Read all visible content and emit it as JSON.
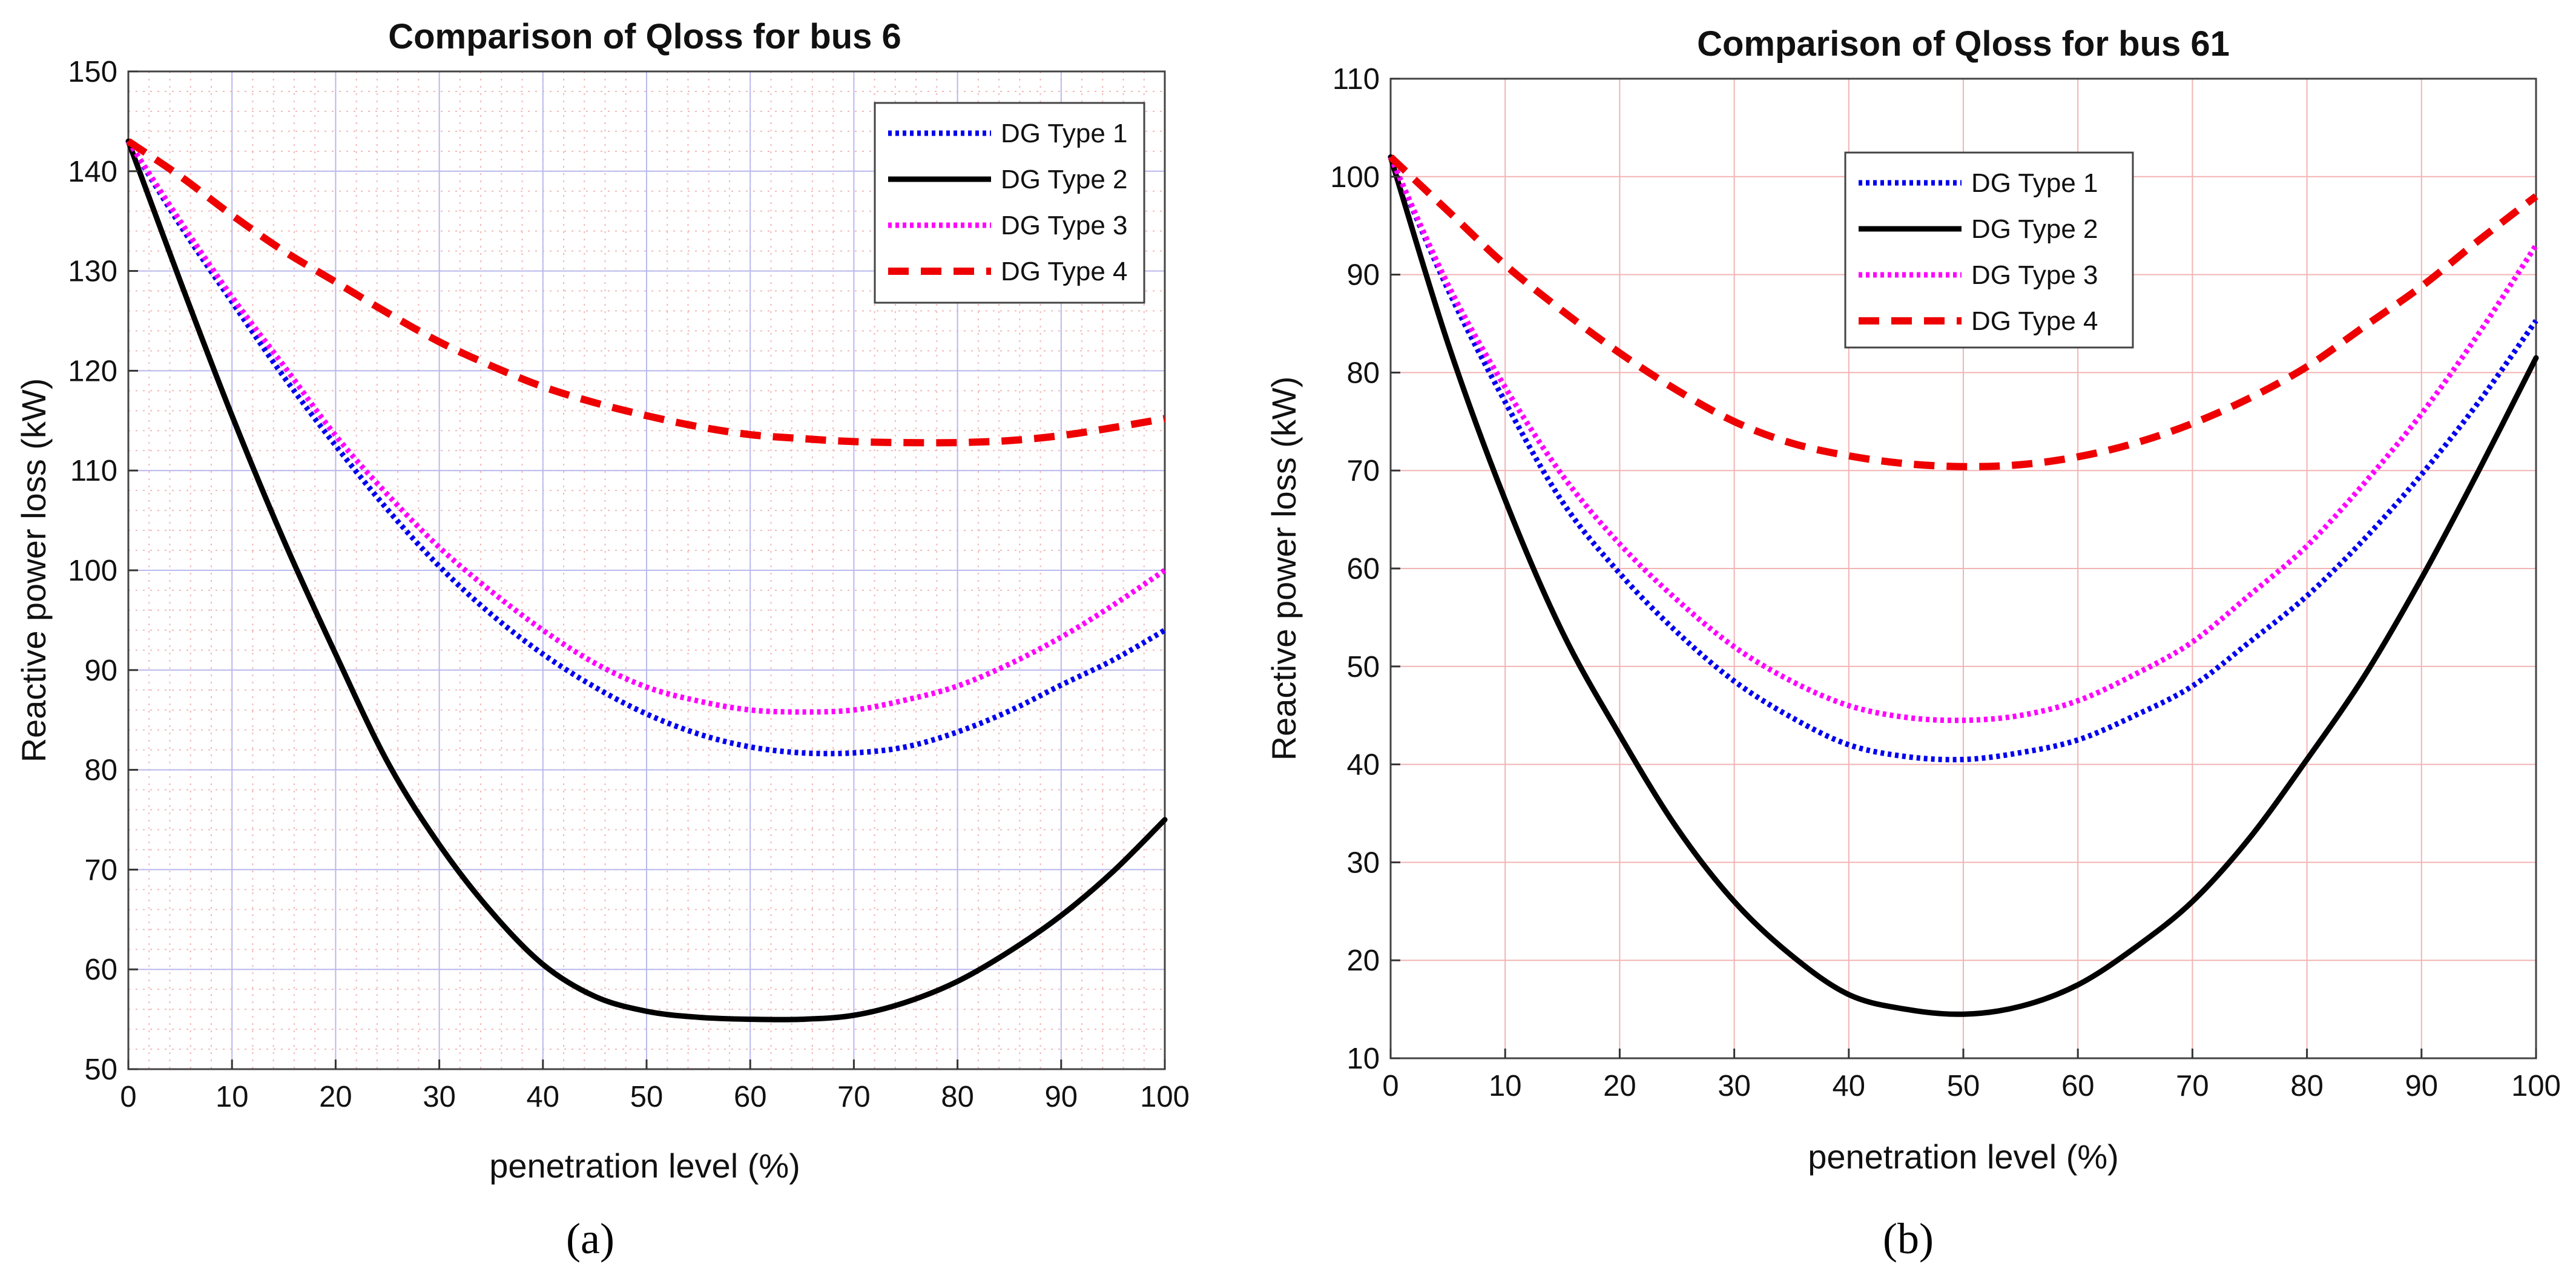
{
  "chart_data": [
    {
      "type": "line",
      "panel_label": "(a)",
      "title": "Comparison of Qloss for bus 6",
      "xlabel": "penetration level (%)",
      "ylabel": "Reactive power loss (kW)",
      "xlim": [
        0,
        100
      ],
      "ylim": [
        50,
        150
      ],
      "xticks": [
        0,
        10,
        20,
        30,
        40,
        50,
        60,
        70,
        80,
        90,
        100
      ],
      "yticks": [
        50,
        60,
        70,
        80,
        90,
        100,
        110,
        120,
        130,
        140,
        150
      ],
      "grid": true,
      "legend_position": "top-right",
      "x": [
        0,
        5,
        10,
        15,
        20,
        25,
        30,
        35,
        40,
        45,
        50,
        55,
        60,
        65,
        70,
        75,
        80,
        85,
        90,
        95,
        100
      ],
      "series": [
        {
          "name": "DG Type 1",
          "color": "#0000ee",
          "style": "dotted",
          "values": [
            143,
            134.6,
            126.9,
            119.4,
            112.5,
            106.1,
            100.4,
            95.6,
            91.6,
            88.3,
            85.6,
            83.6,
            82.3,
            81.7,
            81.7,
            82.3,
            83.8,
            85.9,
            88.5,
            91.0,
            94.0
          ]
        },
        {
          "name": "DG Type 2",
          "color": "#000000",
          "style": "solid",
          "values": [
            143,
            129.0,
            115.5,
            103.0,
            91.6,
            80.8,
            72.5,
            65.8,
            60.5,
            57.3,
            55.8,
            55.2,
            55.0,
            55.0,
            55.4,
            56.7,
            58.8,
            61.8,
            65.4,
            69.8,
            75.0
          ]
        },
        {
          "name": "DG Type 3",
          "color": "#ff00ff",
          "style": "dotted",
          "values": [
            143,
            135.0,
            127.4,
            120.5,
            113.5,
            107.6,
            102.3,
            97.9,
            94.0,
            90.7,
            88.3,
            86.9,
            86.0,
            85.8,
            86.0,
            87.0,
            88.4,
            90.6,
            93.3,
            96.5,
            100.0
          ]
        },
        {
          "name": "DG Type 4",
          "color": "#ee0000",
          "style": "dashed",
          "values": [
            143,
            139.5,
            135.6,
            132.0,
            128.9,
            125.8,
            122.9,
            120.5,
            118.4,
            116.8,
            115.5,
            114.4,
            113.6,
            113.2,
            112.9,
            112.8,
            112.8,
            113.0,
            113.5,
            114.3,
            115.2
          ]
        }
      ]
    },
    {
      "type": "line",
      "panel_label": "(b)",
      "title": "Comparison of Qloss for bus 61",
      "xlabel": "penetration level (%)",
      "ylabel": "Reactive power loss (kW)",
      "xlim": [
        0,
        100
      ],
      "ylim": [
        10,
        110
      ],
      "xticks": [
        0,
        10,
        20,
        30,
        40,
        50,
        60,
        70,
        80,
        90,
        100
      ],
      "yticks": [
        10,
        20,
        30,
        40,
        50,
        60,
        70,
        80,
        90,
        100,
        110
      ],
      "grid": true,
      "legend_position": "top-center",
      "x": [
        0,
        5,
        10,
        15,
        20,
        25,
        30,
        35,
        40,
        45,
        50,
        55,
        60,
        65,
        70,
        75,
        80,
        85,
        90,
        95,
        100
      ],
      "series": [
        {
          "name": "DG Type 1",
          "color": "#0000ee",
          "style": "dotted",
          "values": [
            102,
            88.5,
            77.0,
            66.8,
            59.5,
            53.5,
            48.5,
            44.8,
            42.0,
            40.8,
            40.5,
            41.2,
            42.5,
            45.0,
            48.0,
            52.5,
            57.2,
            63.0,
            69.6,
            77.0,
            85.3
          ]
        },
        {
          "name": "DG Type 2",
          "color": "#000000",
          "style": "solid",
          "values": [
            102,
            83.0,
            67.0,
            53.5,
            43.0,
            33.5,
            26.0,
            20.5,
            16.5,
            15.0,
            14.5,
            15.3,
            17.5,
            21.3,
            26.0,
            32.5,
            40.5,
            49.0,
            59.0,
            70.0,
            81.5
          ]
        },
        {
          "name": "DG Type 3",
          "color": "#ff00ff",
          "style": "dotted",
          "values": [
            102,
            89.0,
            78.5,
            69.5,
            62.5,
            56.8,
            52.0,
            48.5,
            46.0,
            44.8,
            44.5,
            45.0,
            46.5,
            49.2,
            52.5,
            57.3,
            62.3,
            68.7,
            75.8,
            84.0,
            93.0
          ]
        },
        {
          "name": "DG Type 4",
          "color": "#ee0000",
          "style": "dashed",
          "values": [
            102,
            96.5,
            91.0,
            86.3,
            82.0,
            78.2,
            75.0,
            72.8,
            71.5,
            70.7,
            70.4,
            70.6,
            71.4,
            72.8,
            74.8,
            77.4,
            80.6,
            84.7,
            88.8,
            93.5,
            98.0
          ]
        }
      ]
    }
  ]
}
